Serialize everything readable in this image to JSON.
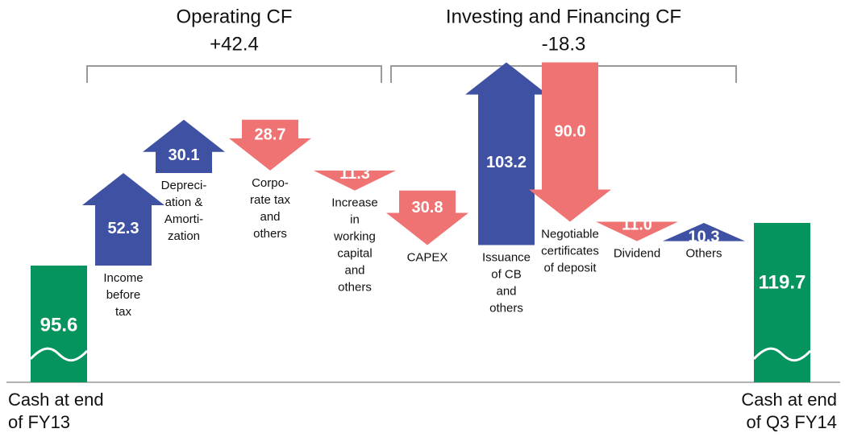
{
  "chart_data": {
    "type": "waterfall",
    "categories": [
      [
        "Cash at end",
        "of FY13"
      ],
      [
        "Income",
        "before",
        "tax"
      ],
      [
        "Depreci-",
        "ation &",
        "Amorti-",
        "zation"
      ],
      [
        "Corpo-",
        "rate tax",
        "and",
        "others"
      ],
      [
        "Increase",
        "in",
        "working",
        "capital",
        "and",
        "others"
      ],
      [
        "CAPEX"
      ],
      [
        "Issuance",
        "of CB",
        "and",
        "others"
      ],
      [
        "Negotiable",
        "certificates",
        "of deposit"
      ],
      [
        "Dividend"
      ],
      [
        "Others"
      ],
      [
        "Cash at end",
        "of Q3 FY14"
      ]
    ],
    "values": [
      95.6,
      52.3,
      30.1,
      -28.7,
      -11.3,
      -30.8,
      103.2,
      -90.0,
      -11.0,
      10.3,
      119.7
    ],
    "value_labels": [
      "95.6",
      "52.3",
      "30.1",
      "28.7",
      "11.3",
      "30.8",
      "103.2",
      "90.0",
      "11.0",
      "10.3",
      "119.7"
    ],
    "groups": [
      {
        "title": "Operating CF",
        "total": "+42.4"
      },
      {
        "title": "Investing and Financing CF",
        "total": "-18.3"
      }
    ],
    "colors": {
      "total": "#05935e",
      "increase": "#3f51a3",
      "decrease": "#ef7373"
    }
  }
}
